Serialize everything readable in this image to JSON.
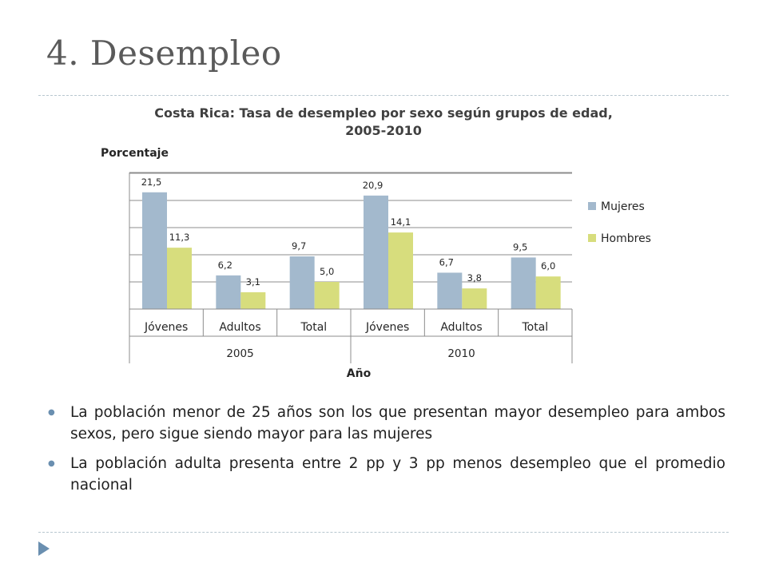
{
  "slide": {
    "title": "4. Desempleo"
  },
  "chart_data": {
    "type": "bar",
    "title": "Costa Rica: Tasa de desempleo por sexo según grupos de edad, 2005-2010",
    "ylabel": "Porcentaje",
    "xlabel": "Año",
    "categories": [
      "Jóvenes",
      "Adultos",
      "Total",
      "Jóvenes",
      "Adultos",
      "Total"
    ],
    "groups": [
      {
        "label": "2005",
        "span": [
          0,
          2
        ]
      },
      {
        "label": "2010",
        "span": [
          3,
          5
        ]
      }
    ],
    "series": [
      {
        "name": "Mujeres",
        "values": [
          21.5,
          6.2,
          9.7,
          20.9,
          6.7,
          9.5
        ],
        "labels": [
          "21,5",
          "6,2",
          "9,7",
          "20,9",
          "6,7",
          "9,5"
        ],
        "color": "#a3b9cd"
      },
      {
        "name": "Hombres",
        "values": [
          11.3,
          3.1,
          5.0,
          14.1,
          3.8,
          6.0
        ],
        "labels": [
          "11,3",
          "3,1",
          "5,0",
          "14,1",
          "3,8",
          "6,0"
        ],
        "color": "#d7dd7d"
      }
    ],
    "ylim": [
      0,
      25
    ],
    "grid": true,
    "legend": "right"
  },
  "bullets": [
    "La población menor de 25 años son los que presentan mayor desempleo para ambos sexos, pero sigue siendo mayor para las mujeres",
    "La población adulta presenta entre 2 pp y 3 pp menos desempleo que el promedio nacional"
  ],
  "icons": {
    "bullet": "small-circle-bullet",
    "corner": "triangle-right-icon"
  }
}
